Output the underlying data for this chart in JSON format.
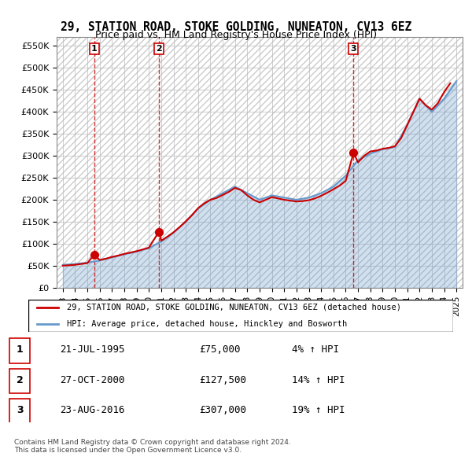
{
  "title": "29, STATION ROAD, STOKE GOLDING, NUNEATON, CV13 6EZ",
  "subtitle": "Price paid vs. HM Land Registry's House Price Index (HPI)",
  "sale_dates_num": [
    1995.55,
    2000.82,
    2016.64
  ],
  "sale_prices": [
    75000,
    127500,
    307000
  ],
  "sale_labels": [
    "1",
    "2",
    "3"
  ],
  "hpi_years": [
    1993,
    1994,
    1995,
    1996,
    1997,
    1998,
    1999,
    2000,
    2001,
    2002,
    2003,
    2004,
    2005,
    2006,
    2007,
    2008,
    2009,
    2010,
    2011,
    2012,
    2013,
    2014,
    2015,
    2016,
    2017,
    2018,
    2019,
    2020,
    2021,
    2022,
    2023,
    2024,
    2025
  ],
  "hpi_values": [
    52000,
    54000,
    57000,
    62000,
    69000,
    76000,
    82000,
    90000,
    105000,
    125000,
    150000,
    180000,
    200000,
    215000,
    230000,
    215000,
    200000,
    210000,
    205000,
    200000,
    205000,
    215000,
    230000,
    255000,
    290000,
    305000,
    315000,
    320000,
    370000,
    430000,
    400000,
    430000,
    470000
  ],
  "price_line_years": [
    1993.0,
    1993.5,
    1994.0,
    1994.5,
    1995.0,
    1995.55,
    1996.0,
    1996.5,
    1997.0,
    1997.5,
    1998.0,
    1998.5,
    1999.0,
    1999.5,
    2000.0,
    2000.82,
    2001.0,
    2001.5,
    2002.0,
    2002.5,
    2003.0,
    2003.5,
    2004.0,
    2004.5,
    2005.0,
    2005.5,
    2006.0,
    2006.5,
    2007.0,
    2007.5,
    2008.0,
    2008.5,
    2009.0,
    2009.5,
    2010.0,
    2010.5,
    2011.0,
    2011.5,
    2012.0,
    2012.5,
    2013.0,
    2013.5,
    2014.0,
    2014.5,
    2015.0,
    2015.5,
    2016.0,
    2016.64,
    2017.0,
    2017.5,
    2018.0,
    2018.5,
    2019.0,
    2019.5,
    2020.0,
    2020.5,
    2021.0,
    2021.5,
    2022.0,
    2022.5,
    2023.0,
    2023.5,
    2024.0,
    2024.5
  ],
  "price_line_values": [
    50000,
    51000,
    52000,
    54000,
    56000,
    75000,
    63000,
    66000,
    70000,
    73000,
    77000,
    80000,
    83000,
    87000,
    91000,
    127500,
    107000,
    116000,
    126000,
    138000,
    151000,
    165000,
    181000,
    192000,
    200000,
    204000,
    211000,
    218000,
    227000,
    222000,
    210000,
    200000,
    194000,
    200000,
    206000,
    203000,
    200000,
    198000,
    196000,
    197000,
    199000,
    203000,
    209000,
    216000,
    224000,
    232000,
    243000,
    307000,
    285000,
    300000,
    310000,
    312000,
    316000,
    318000,
    322000,
    340000,
    370000,
    400000,
    430000,
    415000,
    405000,
    420000,
    445000,
    465000
  ],
  "ylabel_ticks": [
    0,
    50000,
    100000,
    150000,
    200000,
    250000,
    300000,
    350000,
    400000,
    450000,
    500000,
    550000
  ],
  "ylabel_labels": [
    "£0",
    "£50K",
    "£100K",
    "£150K",
    "£200K",
    "£250K",
    "£300K",
    "£350K",
    "£400K",
    "£450K",
    "£500K",
    "£550K"
  ],
  "xtick_years": [
    1993,
    1994,
    1995,
    1996,
    1997,
    1998,
    1999,
    2000,
    2001,
    2002,
    2003,
    2004,
    2005,
    2006,
    2007,
    2008,
    2009,
    2010,
    2011,
    2012,
    2013,
    2014,
    2015,
    2016,
    2017,
    2018,
    2019,
    2020,
    2021,
    2022,
    2023,
    2024,
    2025
  ],
  "xmin": 1992.5,
  "xmax": 2025.5,
  "ymin": 0,
  "ymax": 570000,
  "hpi_color": "#6699cc",
  "price_color": "#cc0000",
  "sale_marker_color": "#cc0000",
  "vline_color": "#cc0000",
  "background_hatch_color": "#dddddd",
  "legend_label_price": "29, STATION ROAD, STOKE GOLDING, NUNEATON, CV13 6EZ (detached house)",
  "legend_label_hpi": "HPI: Average price, detached house, Hinckley and Bosworth",
  "table_data": [
    {
      "num": "1",
      "date": "21-JUL-1995",
      "price": "£75,000",
      "hpi": "4% ↑ HPI"
    },
    {
      "num": "2",
      "date": "27-OCT-2000",
      "price": "£127,500",
      "hpi": "14% ↑ HPI"
    },
    {
      "num": "3",
      "date": "23-AUG-2016",
      "price": "£307,000",
      "hpi": "19% ↑ HPI"
    }
  ],
  "footnote": "Contains HM Land Registry data © Crown copyright and database right 2024.\nThis data is licensed under the Open Government Licence v3.0."
}
